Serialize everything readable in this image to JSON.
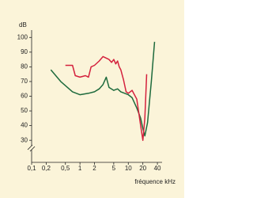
{
  "chart_data": {
    "type": "line",
    "y_label": "dB",
    "x_label": "fréquence kHz",
    "log_x": true,
    "xlim": [
      0.1,
      50
    ],
    "ylim": [
      15,
      105
    ],
    "xticks": [
      {
        "value": 0.1,
        "label": "0,1"
      },
      {
        "value": 0.2,
        "label": "0,2"
      },
      {
        "value": 0.5,
        "label": "0,5"
      },
      1,
      2,
      5,
      10,
      20,
      40
    ],
    "yticks": [
      30,
      40,
      50,
      60,
      70,
      80,
      90,
      100
    ],
    "series": [
      {
        "color": "#1d6a3c",
        "x": [
          0.25,
          0.4,
          0.7,
          1,
          1.5,
          2,
          2.5,
          3,
          3.5,
          4,
          5,
          6,
          7,
          10,
          12,
          15,
          18,
          20,
          22,
          25,
          30,
          35
        ],
        "values": [
          78,
          70,
          63,
          61,
          62,
          63,
          65,
          68,
          73,
          66,
          64,
          65,
          63,
          61,
          59,
          52,
          45,
          38,
          33,
          42,
          70,
          97
        ]
      },
      {
        "color": "#d4213d",
        "x": [
          0.5,
          0.7,
          0.8,
          1,
          1.3,
          1.5,
          1.7,
          2,
          2.5,
          3,
          4,
          4.5,
          5,
          5.5,
          6,
          6.5,
          7,
          8,
          9,
          10,
          12,
          15,
          18,
          20,
          22,
          24
        ],
        "values": [
          81,
          81,
          74,
          73,
          74,
          73,
          80,
          81,
          84,
          87,
          85,
          83,
          85,
          82,
          84,
          80,
          78,
          71,
          63,
          62,
          64,
          58,
          40,
          30,
          45,
          75
        ]
      }
    ]
  }
}
